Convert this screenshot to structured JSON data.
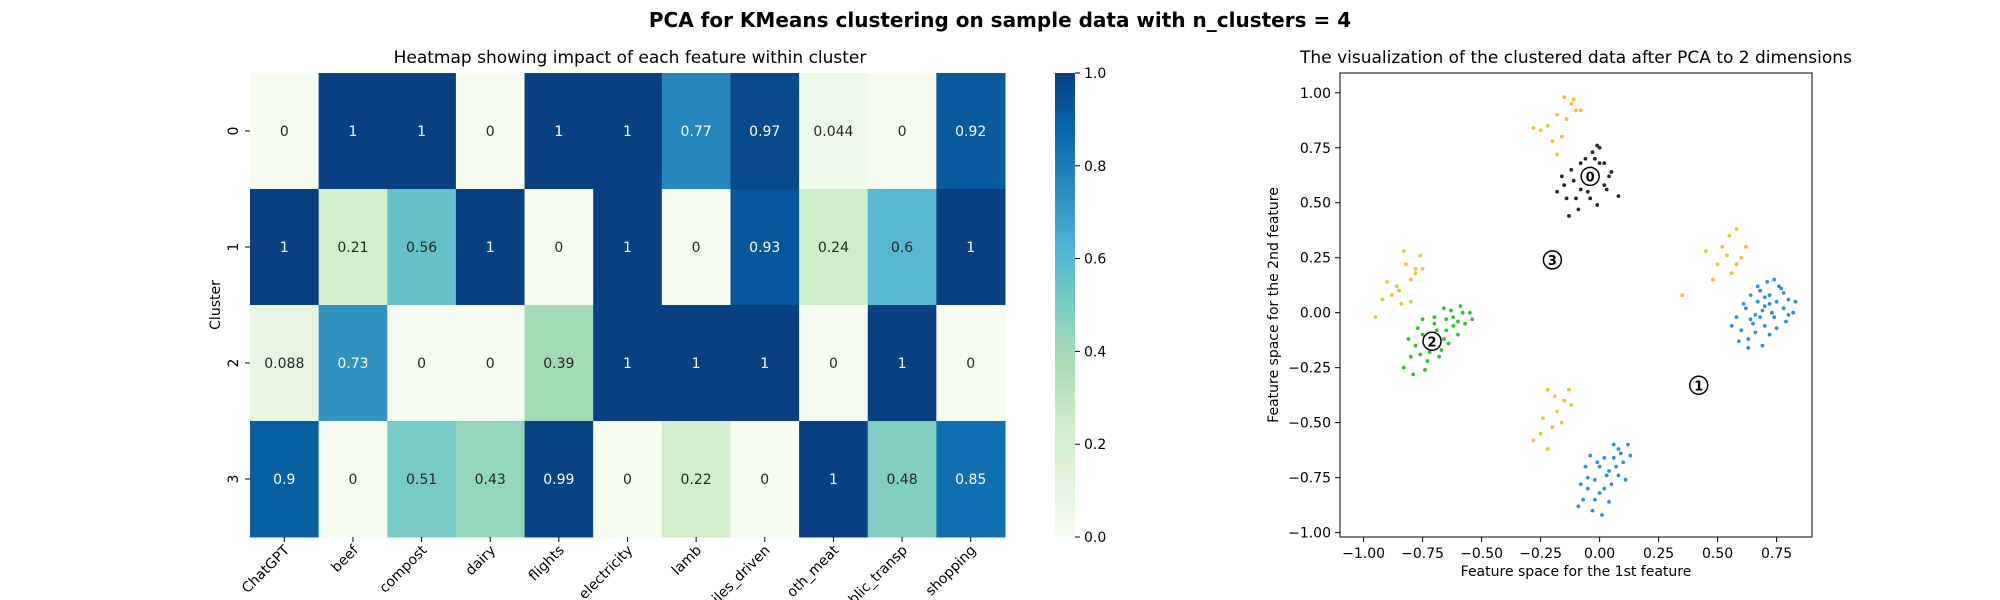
{
  "figure": {
    "suptitle": "PCA for KMeans clustering on sample data with n_clusters = 4"
  },
  "chart_data": [
    {
      "type": "heatmap",
      "title": "Heatmap showing impact of each feature within cluster",
      "ylabel": "Cluster",
      "xlabel": "",
      "x_ticklabels": [
        "ChatGPT",
        "beef",
        "compost",
        "dairy",
        "flights",
        "electricity",
        "lamb",
        "miles_driven",
        "oth_meat",
        "public_transp",
        "shopping"
      ],
      "x_ticklabels_shown": [
        "ChatGPT",
        "beef",
        "compost",
        "dairy",
        "flights",
        "electricity",
        "lamb",
        "iles_driven",
        "oth_meat",
        "blic_transp",
        "shopping"
      ],
      "y_ticklabels": [
        "0",
        "1",
        "2",
        "3"
      ],
      "values": [
        [
          0,
          1,
          1,
          0,
          1,
          1,
          0.77,
          0.97,
          0.044,
          0,
          0.92
        ],
        [
          1,
          0.21,
          0.56,
          1,
          0,
          1,
          0,
          0.93,
          0.24,
          0.6,
          1
        ],
        [
          0.088,
          0.73,
          0,
          0,
          0.39,
          1,
          1,
          1,
          0,
          1,
          0
        ],
        [
          0.9,
          0,
          0.51,
          0.43,
          0.99,
          0,
          0.22,
          0,
          1,
          0.48,
          0.85
        ]
      ],
      "annotations": [
        [
          "0",
          "1",
          "1",
          "0",
          "1",
          "1",
          "0.77",
          "0.97",
          "0.044",
          "0",
          "0.92"
        ],
        [
          "1",
          "0.21",
          "0.56",
          "1",
          "0",
          "1",
          "0",
          "0.93",
          "0.24",
          "0.6",
          "1"
        ],
        [
          "0.088",
          "0.73",
          "0",
          "0",
          "0.39",
          "1",
          "1",
          "1",
          "0",
          "1",
          "0"
        ],
        [
          "0.9",
          "0",
          "0.51",
          "0.43",
          "0.99",
          "0",
          "0.22",
          "0",
          "1",
          "0.48",
          "0.85"
        ]
      ],
      "colormap": "GnBu",
      "colorbar": {
        "range": [
          0,
          1
        ],
        "ticks": [
          0.0,
          0.2,
          0.4,
          0.6,
          0.8,
          1.0
        ],
        "ticklabels": [
          "0.0",
          "0.2",
          "0.4",
          "0.6",
          "0.8",
          "1.0"
        ]
      }
    },
    {
      "type": "scatter",
      "title": "The visualization of the clustered data after PCA to 2 dimensions",
      "xlabel": "Feature space for the 1st feature",
      "ylabel": "Feature space for the 2nd feature",
      "xlim": [
        -1.1,
        0.9
      ],
      "ylim": [
        -1.02,
        1.09
      ],
      "xticks": [
        -1.0,
        -0.75,
        -0.5,
        -0.25,
        0.0,
        0.25,
        0.5,
        0.75
      ],
      "xticklabels": [
        "−1.00",
        "−0.75",
        "−0.50",
        "−0.25",
        "0.00",
        "0.25",
        "0.50",
        "0.75"
      ],
      "yticks": [
        -1.0,
        -0.75,
        -0.5,
        -0.25,
        0.0,
        0.25,
        0.5,
        0.75,
        1.0
      ],
      "yticklabels": [
        "−1.00",
        "−0.75",
        "−0.50",
        "−0.25",
        "0.00",
        "0.25",
        "0.50",
        "0.75",
        "1.00"
      ],
      "grid": false,
      "series": [
        {
          "color": "#1f2a30",
          "values": [
            [
              -0.06,
              0.6
            ],
            [
              -0.02,
              0.64
            ],
            [
              -0.08,
              0.68
            ],
            [
              -0.03,
              0.73
            ],
            [
              0.0,
              0.75
            ],
            [
              -0.05,
              0.55
            ],
            [
              -0.1,
              0.52
            ],
            [
              -0.15,
              0.58
            ],
            [
              0.02,
              0.58
            ],
            [
              0.04,
              0.62
            ],
            [
              -0.12,
              0.65
            ],
            [
              -0.02,
              0.7
            ],
            [
              -0.18,
              0.55
            ],
            [
              -0.09,
              0.47
            ],
            [
              -0.13,
              0.44
            ],
            [
              -0.04,
              0.52
            ],
            [
              0.0,
              0.68
            ],
            [
              0.03,
              0.56
            ],
            [
              -0.07,
              0.61
            ],
            [
              0.05,
              0.64
            ],
            [
              -0.11,
              0.6
            ],
            [
              -0.16,
              0.62
            ],
            [
              -0.01,
              0.49
            ],
            [
              0.08,
              0.53
            ],
            [
              -0.06,
              0.7
            ],
            [
              -0.01,
              0.76
            ],
            [
              -0.14,
              0.52
            ],
            [
              -0.03,
              0.63
            ],
            [
              0.02,
              0.68
            ],
            [
              -0.08,
              0.56
            ]
          ]
        },
        {
          "color": "#2f8ee0",
          "values": [
            [
              0.62,
              0.02
            ],
            [
              0.66,
              -0.01
            ],
            [
              0.7,
              0.03
            ],
            [
              0.72,
              0.08
            ],
            [
              0.75,
              0.05
            ],
            [
              0.68,
              0.1
            ],
            [
              0.78,
              0.02
            ],
            [
              0.8,
              0.06
            ],
            [
              0.65,
              -0.05
            ],
            [
              0.6,
              -0.08
            ],
            [
              0.63,
              -0.12
            ],
            [
              0.7,
              -0.06
            ],
            [
              0.74,
              -0.02
            ],
            [
              0.77,
              0.11
            ],
            [
              0.82,
              0.0
            ],
            [
              0.58,
              -0.02
            ],
            [
              0.67,
              0.05
            ],
            [
              0.72,
              -0.1
            ],
            [
              0.69,
              -0.15
            ],
            [
              0.64,
              0.08
            ],
            [
              0.76,
              0.12
            ],
            [
              0.71,
              0.14
            ],
            [
              0.59,
              -0.13
            ],
            [
              0.66,
              -0.09
            ],
            [
              0.79,
              -0.04
            ],
            [
              0.73,
              0.0
            ],
            [
              0.68,
              -0.02
            ],
            [
              0.61,
              0.04
            ],
            [
              0.75,
              -0.07
            ],
            [
              0.7,
              0.07
            ],
            [
              0.83,
              0.05
            ],
            [
              0.63,
              -0.16
            ],
            [
              0.67,
              0.12
            ],
            [
              0.78,
              0.09
            ],
            [
              0.56,
              -0.06
            ],
            [
              0.74,
              0.15
            ],
            [
              0.69,
              0.01
            ],
            [
              0.64,
              -0.03
            ],
            [
              0.8,
              -0.01
            ],
            [
              0.72,
              0.04
            ],
            [
              -0.05,
              -0.75
            ],
            [
              0.0,
              -0.7
            ],
            [
              0.04,
              -0.72
            ],
            [
              -0.08,
              -0.78
            ],
            [
              0.06,
              -0.66
            ],
            [
              0.08,
              -0.62
            ],
            [
              -0.02,
              -0.85
            ],
            [
              0.02,
              -0.8
            ],
            [
              0.1,
              -0.68
            ],
            [
              -0.06,
              -0.7
            ],
            [
              0.12,
              -0.6
            ],
            [
              -0.03,
              -0.9
            ],
            [
              0.01,
              -0.92
            ],
            [
              0.05,
              -0.78
            ],
            [
              -0.09,
              -0.88
            ],
            [
              0.03,
              -0.74
            ],
            [
              0.07,
              -0.7
            ],
            [
              -0.04,
              -0.65
            ],
            [
              0.09,
              -0.64
            ],
            [
              0.0,
              -0.82
            ],
            [
              -0.07,
              -0.85
            ],
            [
              0.11,
              -0.76
            ],
            [
              0.06,
              -0.6
            ],
            [
              -0.01,
              -0.68
            ],
            [
              0.04,
              -0.86
            ],
            [
              -0.05,
              -0.8
            ],
            [
              0.02,
              -0.66
            ],
            [
              0.08,
              -0.74
            ],
            [
              0.13,
              -0.65
            ],
            [
              -0.02,
              -0.76
            ]
          ]
        },
        {
          "color": "#33c030",
          "values": [
            [
              -0.75,
              -0.1
            ],
            [
              -0.7,
              -0.05
            ],
            [
              -0.68,
              -0.12
            ],
            [
              -0.72,
              -0.18
            ],
            [
              -0.78,
              -0.15
            ],
            [
              -0.65,
              -0.08
            ],
            [
              -0.62,
              -0.02
            ],
            [
              -0.58,
              0.0
            ],
            [
              -0.6,
              -0.1
            ],
            [
              -0.8,
              -0.2
            ],
            [
              -0.83,
              -0.25
            ],
            [
              -0.73,
              -0.22
            ],
            [
              -0.67,
              -0.17
            ],
            [
              -0.64,
              -0.14
            ],
            [
              -0.7,
              -0.02
            ],
            [
              -0.75,
              -0.03
            ],
            [
              -0.66,
              0.02
            ],
            [
              -0.62,
              -0.06
            ],
            [
              -0.55,
              0.0
            ],
            [
              -0.57,
              -0.05
            ],
            [
              -0.74,
              -0.26
            ],
            [
              -0.79,
              -0.28
            ],
            [
              -0.69,
              -0.08
            ],
            [
              -0.63,
              0.01
            ],
            [
              -0.71,
              -0.14
            ],
            [
              -0.77,
              -0.07
            ],
            [
              -0.6,
              -0.04
            ],
            [
              -0.68,
              -0.2
            ],
            [
              -0.54,
              -0.03
            ],
            [
              -0.72,
              -0.1
            ],
            [
              -0.66,
              -0.12
            ],
            [
              -0.59,
              0.03
            ],
            [
              -0.81,
              -0.12
            ],
            [
              -0.76,
              -0.19
            ],
            [
              -0.65,
              -0.03
            ]
          ]
        },
        {
          "color": "#f2c030",
          "values": [
            [
              -0.15,
              0.98
            ],
            [
              -0.12,
              0.95
            ],
            [
              -0.18,
              0.9
            ],
            [
              -0.1,
              0.92
            ],
            [
              -0.22,
              0.85
            ],
            [
              -0.25,
              0.83
            ],
            [
              -0.2,
              0.78
            ],
            [
              -0.14,
              0.88
            ],
            [
              -0.08,
              0.92
            ],
            [
              -0.16,
              0.8
            ],
            [
              -0.28,
              0.84
            ],
            [
              -0.18,
              0.72
            ],
            [
              -0.11,
              0.97
            ],
            [
              -0.85,
              0.1
            ],
            [
              -0.8,
              0.05
            ],
            [
              -0.82,
              0.22
            ],
            [
              -0.78,
              0.18
            ],
            [
              -0.88,
              0.08
            ],
            [
              -0.9,
              0.14
            ],
            [
              -0.83,
              0.28
            ],
            [
              -0.76,
              0.26
            ],
            [
              -0.86,
              0.12
            ],
            [
              -0.95,
              -0.02
            ],
            [
              -0.8,
              0.15
            ],
            [
              -0.78,
              0.2
            ],
            [
              -0.84,
              0.04
            ],
            [
              -0.92,
              0.06
            ],
            [
              -0.75,
              0.2
            ],
            [
              0.55,
              0.35
            ],
            [
              0.58,
              0.38
            ],
            [
              0.52,
              0.3
            ],
            [
              0.6,
              0.25
            ],
            [
              0.5,
              0.22
            ],
            [
              0.56,
              0.18
            ],
            [
              0.45,
              0.28
            ],
            [
              0.62,
              0.3
            ],
            [
              0.48,
              0.15
            ],
            [
              0.35,
              0.08
            ],
            [
              0.58,
              0.22
            ],
            [
              0.54,
              0.26
            ],
            [
              -0.22,
              -0.35
            ],
            [
              -0.18,
              -0.45
            ],
            [
              -0.25,
              -0.55
            ],
            [
              -0.2,
              -0.52
            ],
            [
              -0.15,
              -0.4
            ],
            [
              -0.28,
              -0.58
            ],
            [
              -0.22,
              -0.62
            ],
            [
              -0.12,
              -0.42
            ],
            [
              -0.19,
              -0.38
            ],
            [
              -0.24,
              -0.48
            ],
            [
              -0.16,
              -0.5
            ],
            [
              -0.13,
              -0.35
            ]
          ]
        }
      ],
      "centers": [
        {
          "label": "0",
          "x": -0.04,
          "y": 0.62
        },
        {
          "label": "1",
          "x": 0.42,
          "y": -0.33
        },
        {
          "label": "2",
          "x": -0.71,
          "y": -0.13
        },
        {
          "label": "3",
          "x": -0.2,
          "y": 0.24
        }
      ]
    }
  ]
}
